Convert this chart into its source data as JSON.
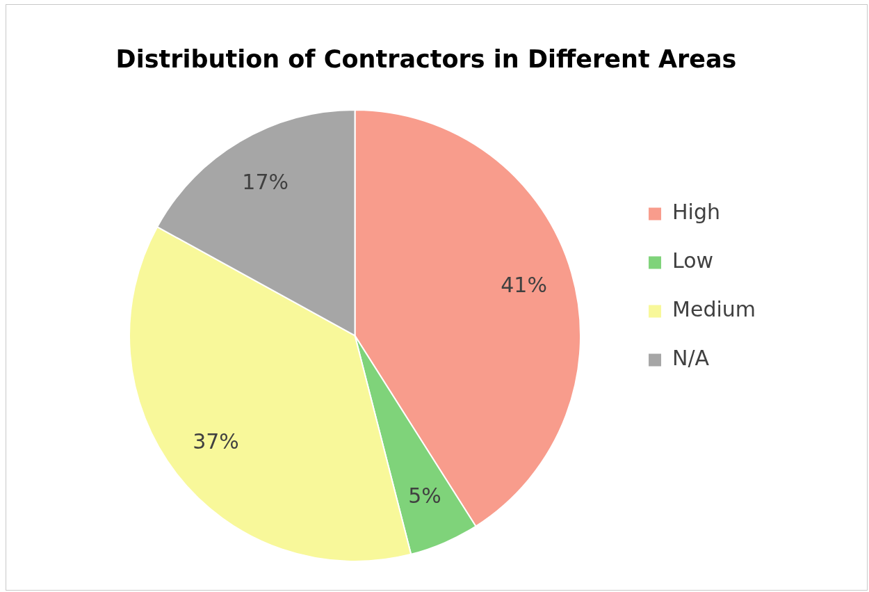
{
  "chart_data": {
    "type": "pie",
    "title": "Distribution of Contractors in Different Areas",
    "categories": [
      "High",
      "Low",
      "Medium",
      "N/A"
    ],
    "values": [
      41,
      5,
      37,
      17
    ],
    "colors": [
      "#f89c8c",
      "#7fd37a",
      "#f8f89a",
      "#a6a6a6"
    ],
    "value_labels": [
      "41%",
      "5%",
      "37%",
      "17%"
    ],
    "legend": "right"
  }
}
